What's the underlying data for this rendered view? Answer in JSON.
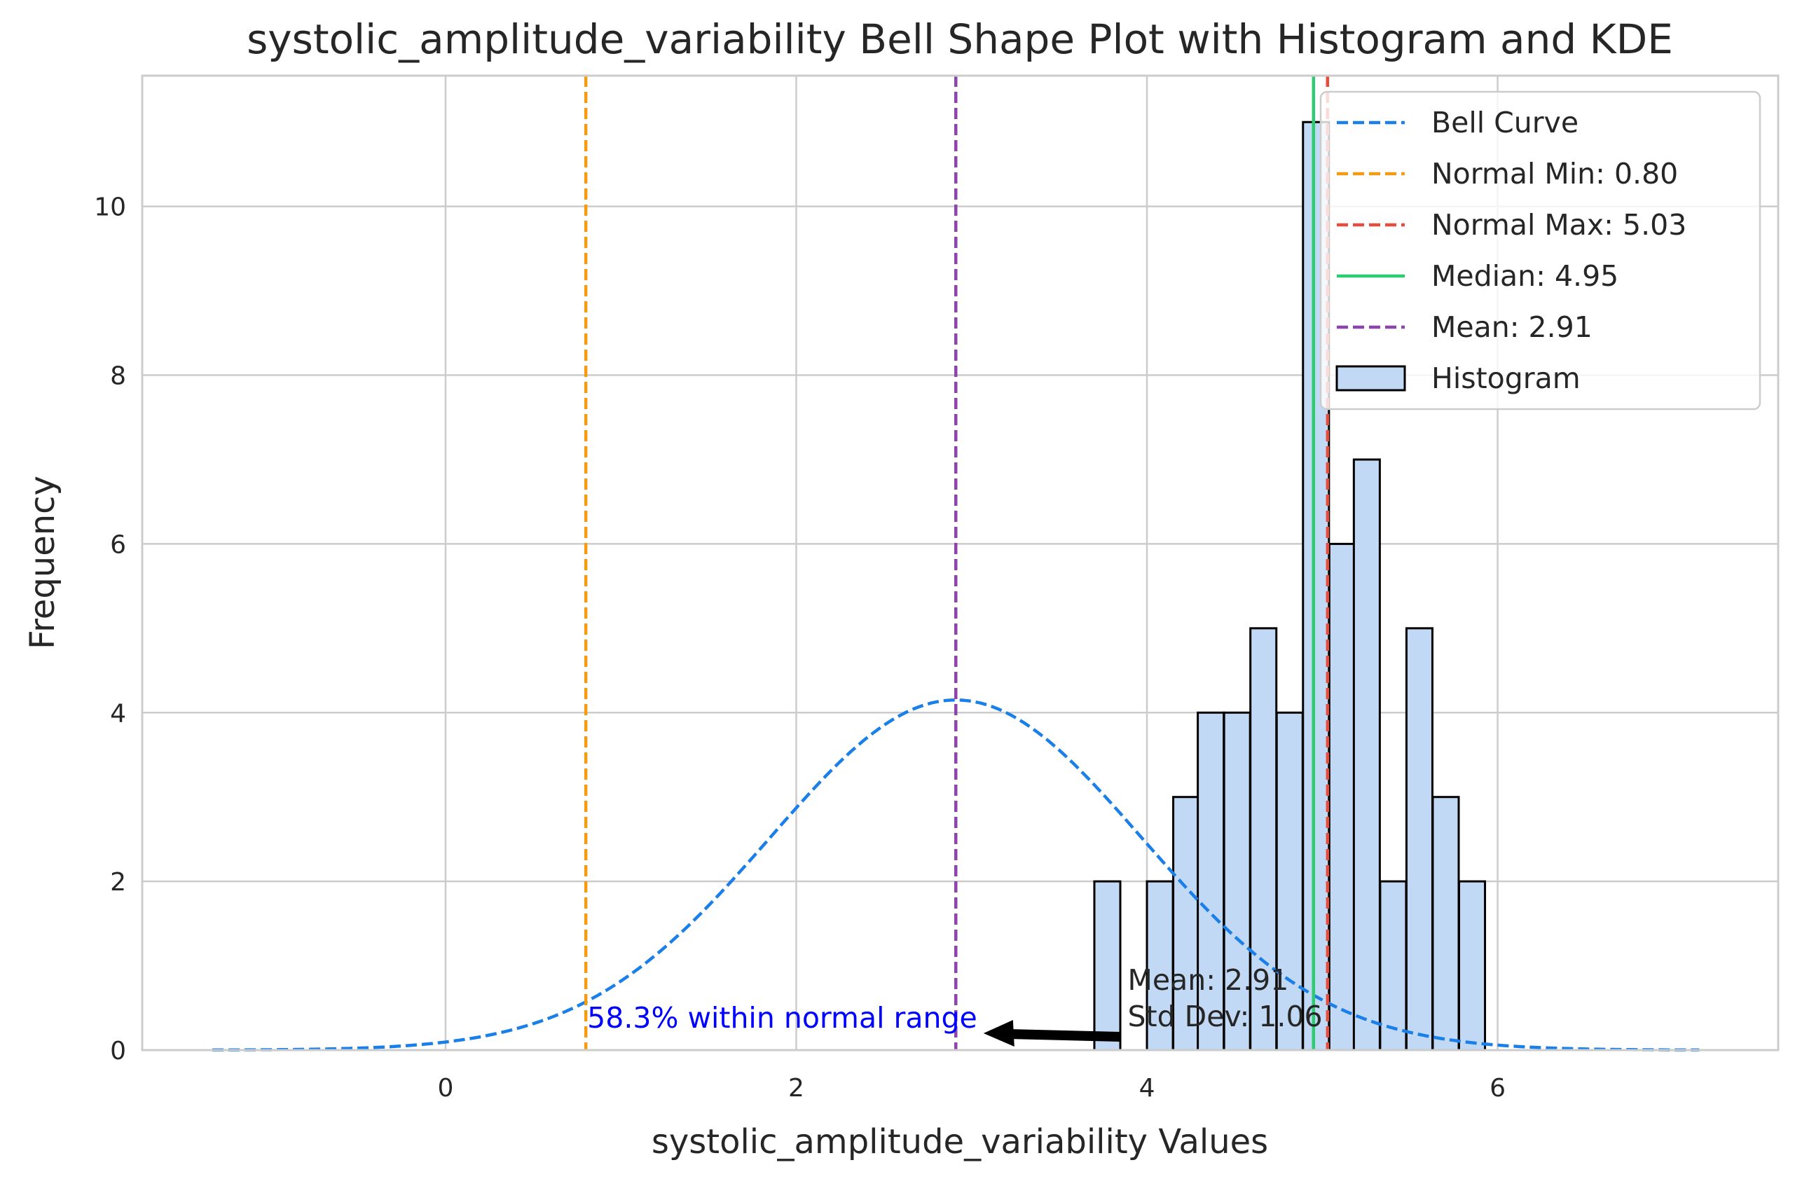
{
  "chart_data": {
    "type": "bar",
    "title": "systolic_amplitude_variability Bell Shape Plot with Histogram and KDE",
    "xlabel": "systolic_amplitude_variability Values",
    "ylabel": "Frequency",
    "xlim": [
      -1.73,
      7.6
    ],
    "ylim": [
      0,
      11.55
    ],
    "xticks": [
      0,
      2,
      4,
      6
    ],
    "yticks": [
      0,
      2,
      4,
      6,
      8,
      10
    ],
    "grid": true,
    "legend_position": "top-right",
    "histogram": {
      "name": "Histogram",
      "bin_width": 0.148,
      "bins": [
        {
          "x0": 3.7,
          "count": 2
        },
        {
          "x0": 3.85,
          "count": 0
        },
        {
          "x0": 4.0,
          "count": 2
        },
        {
          "x0": 4.15,
          "count": 3
        },
        {
          "x0": 4.29,
          "count": 4
        },
        {
          "x0": 4.44,
          "count": 4
        },
        {
          "x0": 4.59,
          "count": 5
        },
        {
          "x0": 4.74,
          "count": 4
        },
        {
          "x0": 4.89,
          "count": 11
        },
        {
          "x0": 5.04,
          "count": 6
        },
        {
          "x0": 5.18,
          "count": 7
        },
        {
          "x0": 5.33,
          "count": 2
        },
        {
          "x0": 5.48,
          "count": 5
        },
        {
          "x0": 5.63,
          "count": 3
        },
        {
          "x0": 5.78,
          "count": 2
        }
      ]
    },
    "bell_curve": {
      "name": "Bell Curve",
      "mean": 2.91,
      "std": 1.06,
      "peak": 4.15,
      "x_range": [
        -1.33,
        7.15
      ]
    },
    "lines": [
      {
        "name": "Normal Min: 0.80",
        "x": 0.8,
        "style": "dashed",
        "color": "#f39c12"
      },
      {
        "name": "Normal Max: 5.03",
        "x": 5.03,
        "style": "dashed",
        "color": "#e74c3c"
      },
      {
        "name": "Median: 4.95",
        "x": 4.95,
        "style": "solid",
        "color": "#2ecc71"
      },
      {
        "name": "Mean: 2.91",
        "x": 2.91,
        "style": "dashed",
        "color": "#8e44ad"
      }
    ],
    "annotations": {
      "normal_range_text": "58.3% within normal range",
      "stats_line1": "Mean: 2.91",
      "stats_line2": "Std Dev: 1.06"
    },
    "legend": [
      {
        "label": "Bell Curve",
        "kind": "dashed",
        "color": "#1a7fe8"
      },
      {
        "label": "Normal Min: 0.80",
        "kind": "dashed",
        "color": "#f39c12"
      },
      {
        "label": "Normal Max: 5.03",
        "kind": "dashed",
        "color": "#e74c3c"
      },
      {
        "label": "Median: 4.95",
        "kind": "solid",
        "color": "#2ecc71"
      },
      {
        "label": "Mean: 2.91",
        "kind": "dashed",
        "color": "#8e44ad"
      },
      {
        "label": "Histogram",
        "kind": "patch",
        "color": "#c2d9f5"
      }
    ],
    "colors": {
      "bell": "#1a7fe8",
      "hist_fill": "#c2d9f5",
      "hist_edge": "#000000",
      "annot_text": "#0000ff"
    }
  }
}
